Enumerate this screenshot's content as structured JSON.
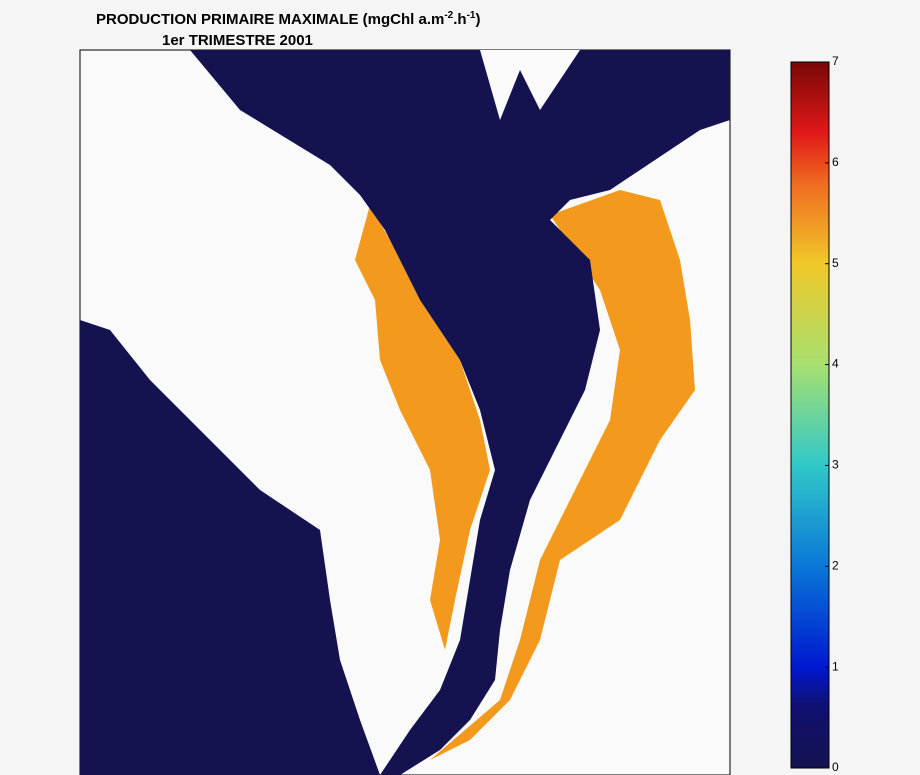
{
  "title": {
    "parts": [
      "PRODUCTION PRIMAIRE MAXIMALE (mgChl a.m",
      "-2",
      ".h",
      "-1",
      ")"
    ]
  },
  "subtitle": "1er TRIMESTRE 2001",
  "colorbar": {
    "lim": [
      0,
      7
    ],
    "ticks": [
      0,
      1,
      2,
      3,
      4,
      5,
      6,
      7
    ],
    "stops": [
      {
        "value": 0,
        "color": "#14124f"
      },
      {
        "value": 0.6,
        "color": "#101070"
      },
      {
        "value": 1,
        "color": "#0018d0"
      },
      {
        "value": 2,
        "color": "#0a78d8"
      },
      {
        "value": 3,
        "color": "#30c8c8"
      },
      {
        "value": 4,
        "color": "#a8e070"
      },
      {
        "value": 5,
        "color": "#f0c828"
      },
      {
        "value": 5.8,
        "color": "#f06a20"
      },
      {
        "value": 6.3,
        "color": "#e01818"
      },
      {
        "value": 7,
        "color": "#7a0808"
      }
    ]
  }
}
